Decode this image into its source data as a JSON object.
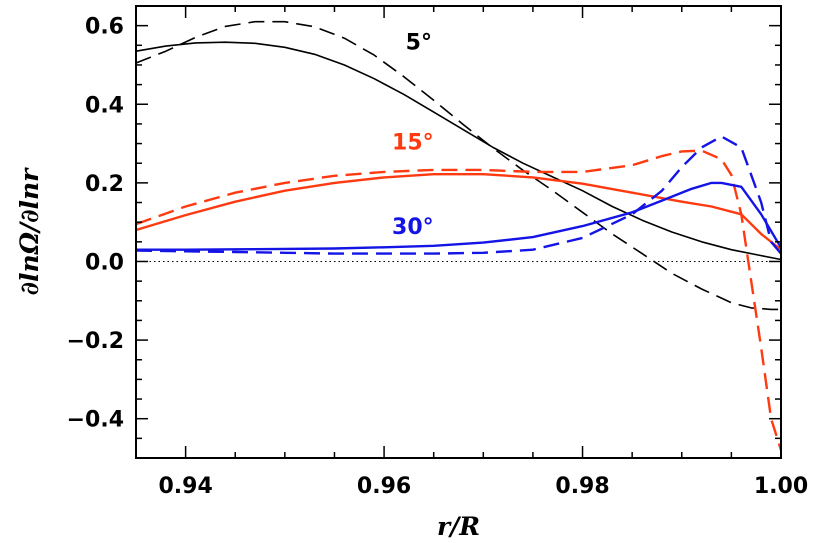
{
  "chart_data": {
    "type": "line",
    "xlabel": "r/R",
    "ylabel": "∂lnΩ/∂lnr",
    "xlim": [
      0.935,
      1.0
    ],
    "ylim": [
      -0.5,
      0.65
    ],
    "xticks": [
      0.94,
      0.96,
      0.98,
      1.0
    ],
    "xtick_labels": [
      "0.94",
      "0.96",
      "0.98",
      "1.00"
    ],
    "yticks": [
      -0.4,
      -0.2,
      0.0,
      0.2,
      0.4,
      0.6
    ],
    "ytick_labels": [
      "−0.4",
      "−0.2",
      "0.0",
      "0.2",
      "0.4",
      "0.6"
    ],
    "zero_line": true,
    "grid": false,
    "annotations": [
      {
        "text": "5°",
        "color": "#000000",
        "x": 0.9635,
        "y": 0.56
      },
      {
        "text": "15°",
        "color": "#ff3a10",
        "x": 0.9629,
        "y": 0.305
      },
      {
        "text": "30°",
        "color": "#1414e6",
        "x": 0.9629,
        "y": 0.09
      }
    ],
    "series": [
      {
        "color": "#000000",
        "dash": "solid",
        "x": [
          0.935,
          0.938,
          0.941,
          0.944,
          0.947,
          0.95,
          0.953,
          0.956,
          0.959,
          0.962,
          0.965,
          0.968,
          0.971,
          0.974,
          0.977,
          0.98,
          0.983,
          0.986,
          0.989,
          0.992,
          0.995,
          0.998,
          1.0
        ],
        "y": [
          0.535,
          0.548,
          0.556,
          0.558,
          0.555,
          0.545,
          0.527,
          0.5,
          0.465,
          0.425,
          0.38,
          0.335,
          0.29,
          0.25,
          0.215,
          0.18,
          0.14,
          0.105,
          0.075,
          0.05,
          0.03,
          0.015,
          0.005
        ]
      },
      {
        "color": "#000000",
        "dash": "dashed",
        "x": [
          0.935,
          0.938,
          0.941,
          0.944,
          0.947,
          0.95,
          0.953,
          0.956,
          0.959,
          0.962,
          0.965,
          0.968,
          0.971,
          0.974,
          0.977,
          0.98,
          0.983,
          0.986,
          0.989,
          0.992,
          0.995,
          0.997,
          0.999,
          1.0
        ],
        "y": [
          0.505,
          0.535,
          0.57,
          0.598,
          0.61,
          0.61,
          0.597,
          0.568,
          0.525,
          0.47,
          0.41,
          0.348,
          0.288,
          0.232,
          0.18,
          0.125,
          0.07,
          0.02,
          -0.03,
          -0.07,
          -0.105,
          -0.118,
          -0.122,
          -0.122
        ]
      },
      {
        "color": "#ff3a10",
        "dash": "solid",
        "x": [
          0.935,
          0.94,
          0.945,
          0.95,
          0.955,
          0.96,
          0.965,
          0.97,
          0.975,
          0.98,
          0.985,
          0.99,
          0.993,
          0.996,
          0.998,
          1.0
        ],
        "y": [
          0.08,
          0.118,
          0.152,
          0.18,
          0.2,
          0.214,
          0.222,
          0.222,
          0.214,
          0.198,
          0.175,
          0.152,
          0.14,
          0.12,
          0.07,
          0.03
        ]
      },
      {
        "color": "#ff3a10",
        "dash": "dashed",
        "x": [
          0.935,
          0.94,
          0.945,
          0.95,
          0.955,
          0.96,
          0.965,
          0.97,
          0.975,
          0.98,
          0.985,
          0.988,
          0.99,
          0.992,
          0.994,
          0.995,
          0.996,
          0.997,
          0.998,
          0.999,
          1.0
        ],
        "y": [
          0.095,
          0.14,
          0.175,
          0.2,
          0.218,
          0.228,
          0.233,
          0.233,
          0.228,
          0.228,
          0.245,
          0.268,
          0.28,
          0.282,
          0.26,
          0.22,
          0.12,
          -0.05,
          -0.22,
          -0.4,
          -0.48
        ]
      },
      {
        "color": "#1414e6",
        "dash": "solid",
        "x": [
          0.935,
          0.94,
          0.945,
          0.95,
          0.955,
          0.96,
          0.965,
          0.97,
          0.975,
          0.98,
          0.985,
          0.988,
          0.991,
          0.993,
          0.994,
          0.996,
          0.998,
          1.0
        ],
        "y": [
          0.03,
          0.03,
          0.031,
          0.032,
          0.033,
          0.036,
          0.04,
          0.048,
          0.062,
          0.09,
          0.125,
          0.155,
          0.185,
          0.2,
          0.2,
          0.19,
          0.12,
          0.035
        ]
      },
      {
        "color": "#1414e6",
        "dash": "dashed",
        "x": [
          0.935,
          0.94,
          0.945,
          0.95,
          0.955,
          0.96,
          0.965,
          0.97,
          0.975,
          0.98,
          0.985,
          0.988,
          0.99,
          0.992,
          0.994,
          0.996,
          0.998,
          0.999,
          1.0
        ],
        "y": [
          0.028,
          0.026,
          0.024,
          0.022,
          0.02,
          0.02,
          0.02,
          0.022,
          0.03,
          0.06,
          0.12,
          0.18,
          0.24,
          0.29,
          0.318,
          0.29,
          0.15,
          0.05,
          0.02
        ]
      }
    ]
  }
}
